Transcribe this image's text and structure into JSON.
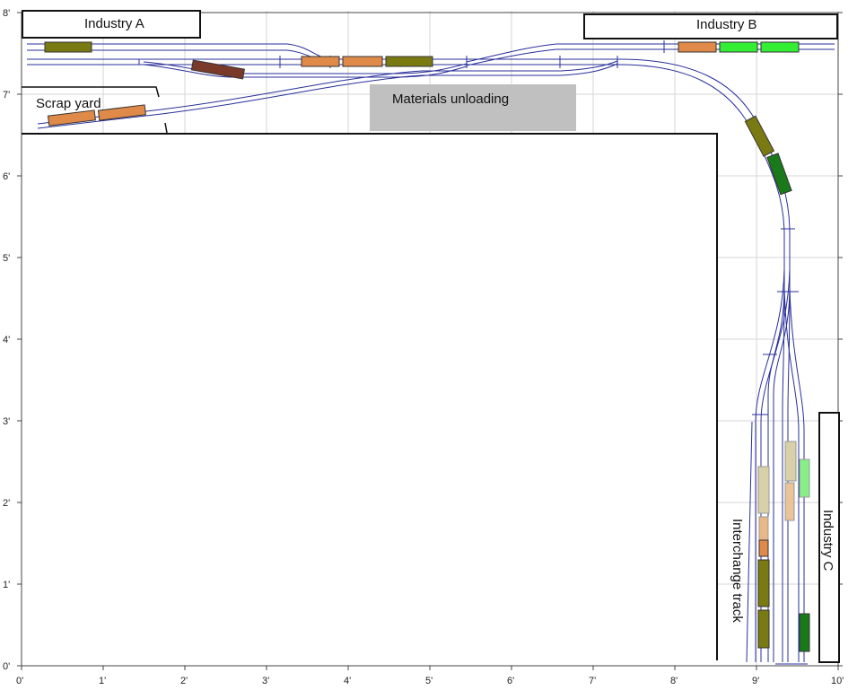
{
  "axis": {
    "x_ticks": [
      "0'",
      "1'",
      "2'",
      "3'",
      "4'",
      "5'",
      "6'",
      "7'",
      "8'",
      "9'",
      "10'"
    ],
    "y_ticks": [
      "0'",
      "1'",
      "2'",
      "3'",
      "4'",
      "5'",
      "6'",
      "7'",
      "8'"
    ]
  },
  "areas": {
    "industry_a": "Industry A",
    "industry_b": "Industry B",
    "industry_c": "Industry C",
    "scrap_yard": "Scrap yard",
    "materials_unloading": "Materials unloading",
    "interchange_track": "Interchange track"
  },
  "colors": {
    "track": "#2a2f9a",
    "grid": "#d6d6d6",
    "materials": "#c0c0c0",
    "car_olive": "#7a7a12",
    "car_orange": "#e08a4a",
    "car_brown": "#7a3a2a",
    "car_green": "#1a7a1a",
    "car_lime": "#33ee33",
    "car_tan": "#d8d0a8"
  }
}
